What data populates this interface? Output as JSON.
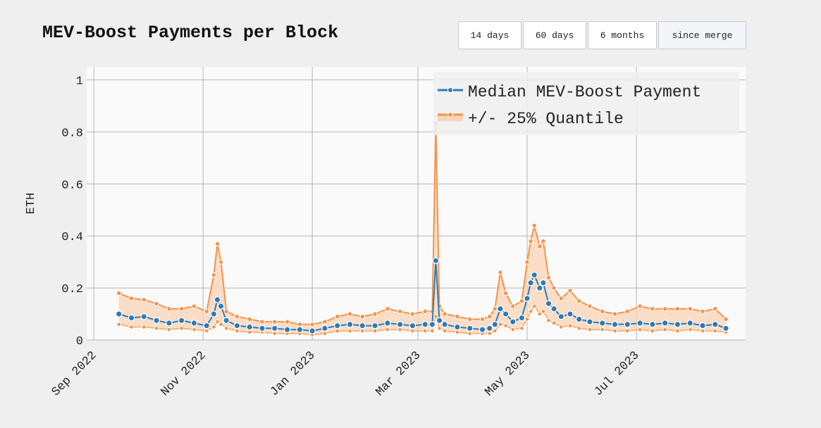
{
  "header": {
    "title": "MEV-Boost Payments per Block",
    "buttons": [
      {
        "label": "14 days",
        "active": false
      },
      {
        "label": "60 days",
        "active": false
      },
      {
        "label": "6 months",
        "active": false
      },
      {
        "label": "since merge",
        "active": true
      }
    ]
  },
  "colors": {
    "median": "#2e7ab6",
    "quantile": "#f5934a",
    "quantile_fill": "#f9d3b6",
    "plot_bg": "#fafafa",
    "grid": "#b5b5b5"
  },
  "chart_data": {
    "type": "line",
    "title": "MEV-Boost Payments per Block",
    "ylabel": "ETH",
    "xlabel": "",
    "ylim": [
      0,
      1.05
    ],
    "yticks": [
      0,
      0.2,
      0.4,
      0.6,
      0.8,
      1
    ],
    "ytick_labels": [
      "0",
      "0.2",
      "0.4",
      "0.6",
      "0.8",
      "1"
    ],
    "xlim": [
      "2022-08-28",
      "2023-08-31"
    ],
    "xticks": [
      "2022-09-01",
      "2022-11-01",
      "2023-01-01",
      "2023-03-01",
      "2023-05-01",
      "2023-07-01"
    ],
    "xtick_labels": [
      "Sep 2022",
      "Nov 2022",
      "Jan 2023",
      "Mar 2023",
      "May 2023",
      "Jul 2023"
    ],
    "grid": true,
    "legend_position": "top-right",
    "legend": [
      "Median MEV-Boost Payment",
      "+/- 25% Quantile"
    ],
    "series": [
      {
        "name": "Median MEV-Boost Payment",
        "points": [
          [
            "2022-09-15",
            0.1
          ],
          [
            "2022-09-22",
            0.085
          ],
          [
            "2022-09-29",
            0.09
          ],
          [
            "2022-10-06",
            0.075
          ],
          [
            "2022-10-13",
            0.065
          ],
          [
            "2022-10-20",
            0.075
          ],
          [
            "2022-10-27",
            0.065
          ],
          [
            "2022-11-03",
            0.055
          ],
          [
            "2022-11-07",
            0.1
          ],
          [
            "2022-11-09",
            0.155
          ],
          [
            "2022-11-11",
            0.13
          ],
          [
            "2022-11-14",
            0.075
          ],
          [
            "2022-11-20",
            0.055
          ],
          [
            "2022-11-27",
            0.05
          ],
          [
            "2022-12-04",
            0.045
          ],
          [
            "2022-12-11",
            0.045
          ],
          [
            "2022-12-18",
            0.04
          ],
          [
            "2022-12-25",
            0.04
          ],
          [
            "2023-01-01",
            0.035
          ],
          [
            "2023-01-08",
            0.045
          ],
          [
            "2023-01-15",
            0.055
          ],
          [
            "2023-01-22",
            0.06
          ],
          [
            "2023-01-29",
            0.055
          ],
          [
            "2023-02-05",
            0.055
          ],
          [
            "2023-02-12",
            0.065
          ],
          [
            "2023-02-19",
            0.06
          ],
          [
            "2023-02-26",
            0.055
          ],
          [
            "2023-03-05",
            0.06
          ],
          [
            "2023-03-09",
            0.06
          ],
          [
            "2023-03-11",
            0.305
          ],
          [
            "2023-03-13",
            0.075
          ],
          [
            "2023-03-16",
            0.06
          ],
          [
            "2023-03-23",
            0.05
          ],
          [
            "2023-03-30",
            0.045
          ],
          [
            "2023-04-06",
            0.04
          ],
          [
            "2023-04-10",
            0.045
          ],
          [
            "2023-04-13",
            0.06
          ],
          [
            "2023-04-16",
            0.12
          ],
          [
            "2023-04-19",
            0.1
          ],
          [
            "2023-04-23",
            0.07
          ],
          [
            "2023-04-28",
            0.085
          ],
          [
            "2023-05-01",
            0.16
          ],
          [
            "2023-05-03",
            0.22
          ],
          [
            "2023-05-05",
            0.25
          ],
          [
            "2023-05-08",
            0.2
          ],
          [
            "2023-05-10",
            0.22
          ],
          [
            "2023-05-13",
            0.14
          ],
          [
            "2023-05-16",
            0.12
          ],
          [
            "2023-05-20",
            0.09
          ],
          [
            "2023-05-25",
            0.1
          ],
          [
            "2023-05-30",
            0.08
          ],
          [
            "2023-06-05",
            0.07
          ],
          [
            "2023-06-12",
            0.065
          ],
          [
            "2023-06-19",
            0.06
          ],
          [
            "2023-06-26",
            0.06
          ],
          [
            "2023-07-03",
            0.065
          ],
          [
            "2023-07-10",
            0.06
          ],
          [
            "2023-07-17",
            0.065
          ],
          [
            "2023-07-24",
            0.06
          ],
          [
            "2023-07-31",
            0.065
          ],
          [
            "2023-08-07",
            0.055
          ],
          [
            "2023-08-14",
            0.06
          ],
          [
            "2023-08-20",
            0.045
          ]
        ]
      },
      {
        "name": "+/- 25% Quantile",
        "upper": [
          [
            "2022-09-15",
            0.18
          ],
          [
            "2022-09-22",
            0.16
          ],
          [
            "2022-09-29",
            0.155
          ],
          [
            "2022-10-06",
            0.14
          ],
          [
            "2022-10-13",
            0.12
          ],
          [
            "2022-10-20",
            0.12
          ],
          [
            "2022-10-27",
            0.13
          ],
          [
            "2022-11-03",
            0.11
          ],
          [
            "2022-11-07",
            0.25
          ],
          [
            "2022-11-09",
            0.37
          ],
          [
            "2022-11-11",
            0.3
          ],
          [
            "2022-11-14",
            0.11
          ],
          [
            "2022-11-20",
            0.09
          ],
          [
            "2022-11-27",
            0.08
          ],
          [
            "2022-12-04",
            0.07
          ],
          [
            "2022-12-11",
            0.07
          ],
          [
            "2022-12-18",
            0.07
          ],
          [
            "2022-12-25",
            0.06
          ],
          [
            "2023-01-01",
            0.06
          ],
          [
            "2023-01-08",
            0.07
          ],
          [
            "2023-01-15",
            0.09
          ],
          [
            "2023-01-22",
            0.1
          ],
          [
            "2023-01-29",
            0.09
          ],
          [
            "2023-02-05",
            0.1
          ],
          [
            "2023-02-12",
            0.12
          ],
          [
            "2023-02-19",
            0.11
          ],
          [
            "2023-02-26",
            0.1
          ],
          [
            "2023-03-05",
            0.11
          ],
          [
            "2023-03-09",
            0.11
          ],
          [
            "2023-03-11",
            0.83
          ],
          [
            "2023-03-13",
            0.13
          ],
          [
            "2023-03-16",
            0.1
          ],
          [
            "2023-03-23",
            0.09
          ],
          [
            "2023-03-30",
            0.08
          ],
          [
            "2023-04-06",
            0.08
          ],
          [
            "2023-04-10",
            0.09
          ],
          [
            "2023-04-13",
            0.12
          ],
          [
            "2023-04-16",
            0.26
          ],
          [
            "2023-04-19",
            0.18
          ],
          [
            "2023-04-23",
            0.13
          ],
          [
            "2023-04-28",
            0.15
          ],
          [
            "2023-05-01",
            0.3
          ],
          [
            "2023-05-03",
            0.38
          ],
          [
            "2023-05-05",
            0.44
          ],
          [
            "2023-05-08",
            0.36
          ],
          [
            "2023-05-10",
            0.38
          ],
          [
            "2023-05-13",
            0.24
          ],
          [
            "2023-05-16",
            0.2
          ],
          [
            "2023-05-20",
            0.16
          ],
          [
            "2023-05-25",
            0.19
          ],
          [
            "2023-05-30",
            0.15
          ],
          [
            "2023-06-05",
            0.13
          ],
          [
            "2023-06-12",
            0.11
          ],
          [
            "2023-06-19",
            0.1
          ],
          [
            "2023-06-26",
            0.11
          ],
          [
            "2023-07-03",
            0.13
          ],
          [
            "2023-07-10",
            0.12
          ],
          [
            "2023-07-17",
            0.12
          ],
          [
            "2023-07-24",
            0.12
          ],
          [
            "2023-07-31",
            0.12
          ],
          [
            "2023-08-07",
            0.11
          ],
          [
            "2023-08-14",
            0.12
          ],
          [
            "2023-08-20",
            0.08
          ]
        ],
        "lower": [
          [
            "2022-09-15",
            0.06
          ],
          [
            "2022-09-22",
            0.05
          ],
          [
            "2022-09-29",
            0.05
          ],
          [
            "2022-10-06",
            0.045
          ],
          [
            "2022-10-13",
            0.04
          ],
          [
            "2022-10-20",
            0.045
          ],
          [
            "2022-10-27",
            0.04
          ],
          [
            "2022-11-03",
            0.035
          ],
          [
            "2022-11-07",
            0.05
          ],
          [
            "2022-11-09",
            0.07
          ],
          [
            "2022-11-11",
            0.06
          ],
          [
            "2022-11-14",
            0.045
          ],
          [
            "2022-11-20",
            0.035
          ],
          [
            "2022-11-27",
            0.03
          ],
          [
            "2022-12-04",
            0.03
          ],
          [
            "2022-12-11",
            0.025
          ],
          [
            "2022-12-18",
            0.025
          ],
          [
            "2022-12-25",
            0.025
          ],
          [
            "2023-01-01",
            0.02
          ],
          [
            "2023-01-08",
            0.025
          ],
          [
            "2023-01-15",
            0.035
          ],
          [
            "2023-01-22",
            0.035
          ],
          [
            "2023-01-29",
            0.035
          ],
          [
            "2023-02-05",
            0.035
          ],
          [
            "2023-02-12",
            0.04
          ],
          [
            "2023-02-19",
            0.04
          ],
          [
            "2023-02-26",
            0.035
          ],
          [
            "2023-03-05",
            0.035
          ],
          [
            "2023-03-09",
            0.035
          ],
          [
            "2023-03-11",
            0.09
          ],
          [
            "2023-03-13",
            0.045
          ],
          [
            "2023-03-16",
            0.035
          ],
          [
            "2023-03-23",
            0.03
          ],
          [
            "2023-03-30",
            0.025
          ],
          [
            "2023-04-06",
            0.025
          ],
          [
            "2023-04-10",
            0.025
          ],
          [
            "2023-04-13",
            0.035
          ],
          [
            "2023-04-16",
            0.06
          ],
          [
            "2023-04-19",
            0.055
          ],
          [
            "2023-04-23",
            0.04
          ],
          [
            "2023-04-28",
            0.045
          ],
          [
            "2023-05-01",
            0.08
          ],
          [
            "2023-05-03",
            0.11
          ],
          [
            "2023-05-05",
            0.13
          ],
          [
            "2023-05-08",
            0.1
          ],
          [
            "2023-05-10",
            0.11
          ],
          [
            "2023-05-13",
            0.075
          ],
          [
            "2023-05-16",
            0.065
          ],
          [
            "2023-05-20",
            0.05
          ],
          [
            "2023-05-25",
            0.055
          ],
          [
            "2023-05-30",
            0.045
          ],
          [
            "2023-06-05",
            0.04
          ],
          [
            "2023-06-12",
            0.04
          ],
          [
            "2023-06-19",
            0.035
          ],
          [
            "2023-06-26",
            0.035
          ],
          [
            "2023-07-03",
            0.04
          ],
          [
            "2023-07-10",
            0.035
          ],
          [
            "2023-07-17",
            0.04
          ],
          [
            "2023-07-24",
            0.035
          ],
          [
            "2023-07-31",
            0.04
          ],
          [
            "2023-08-07",
            0.035
          ],
          [
            "2023-08-14",
            0.035
          ],
          [
            "2023-08-20",
            0.03
          ]
        ]
      }
    ]
  }
}
